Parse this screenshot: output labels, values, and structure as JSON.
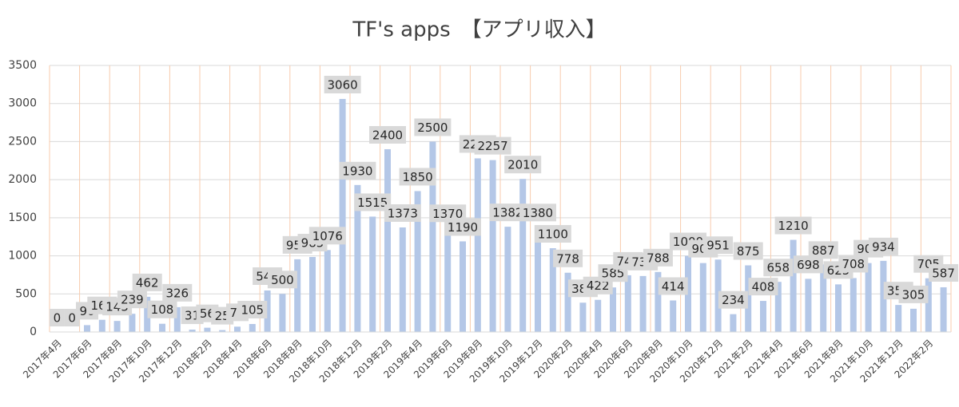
{
  "chart_data": {
    "type": "bar",
    "title": "TF's apps　【アプリ収入】",
    "categories": [
      "2017年4月",
      null,
      "2017年6月",
      null,
      "2017年8月",
      null,
      "2017年10月",
      null,
      "2017年12月",
      null,
      "2018年2月",
      null,
      "2018年4月",
      null,
      "2018年6月",
      null,
      "2018年8月",
      null,
      "2018年10月",
      null,
      "2018年12月",
      null,
      "2019年2月",
      null,
      "2019年4月",
      null,
      "2019年6月",
      null,
      "2019年8月",
      null,
      "2019年10月",
      null,
      "2019年12月",
      null,
      "2020年2月",
      null,
      "2020年4月",
      null,
      "2020年6月",
      null,
      "2020年8月",
      null,
      "2020年10月",
      null,
      "2020年12月",
      null,
      "2021年2月",
      null,
      "2021年4月",
      null,
      "2021年6月",
      null,
      "2021年8月",
      null,
      "2021年10月",
      null,
      "2021年12月",
      null,
      "2022年2月",
      null
    ],
    "values": [
      0,
      0,
      90,
      160,
      145,
      239,
      462,
      108,
      326,
      31,
      56,
      25,
      70,
      105,
      545,
      500,
      955,
      985,
      1076,
      3060,
      1930,
      1515,
      2400,
      1373,
      1850,
      2500,
      1370,
      1190,
      2280,
      2257,
      1382,
      2010,
      1380,
      1100,
      778,
      385,
      422,
      585,
      745,
      735,
      788,
      414,
      1000,
      905,
      951,
      234,
      875,
      408,
      658,
      1210,
      698,
      887,
      625,
      708,
      905,
      934,
      355,
      305,
      705,
      587
    ],
    "color": "#b4c7e7",
    "ylim": [
      0,
      3500
    ],
    "yticks": [
      0,
      500,
      1000,
      1500,
      2000,
      2500,
      3000,
      3500
    ],
    "grid": true
  }
}
